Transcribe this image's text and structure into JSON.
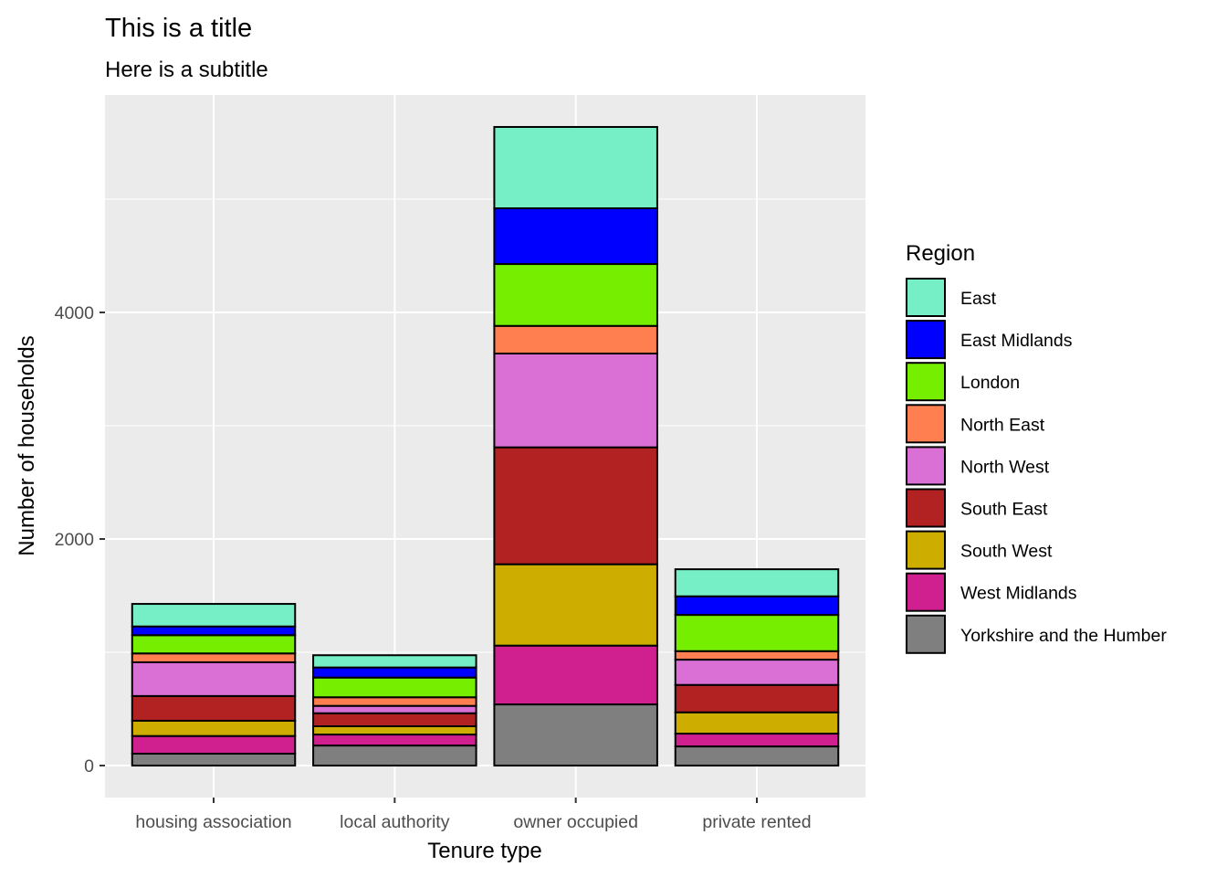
{
  "chart_data": {
    "type": "bar",
    "stacked": true,
    "title": "This is a title",
    "subtitle": "Here is a subtitle",
    "xlabel": "Tenure type",
    "ylabel": "Number of households",
    "categories": [
      "housing association",
      "local authority",
      "owner occupied",
      "private rented"
    ],
    "ylim": [
      -282,
      5919
    ],
    "yticks": [
      0,
      2000,
      4000
    ],
    "yticks_minor": [
      1000,
      3000,
      5000
    ],
    "ytick_labels": [
      "0",
      "2000",
      "4000"
    ],
    "grid": true,
    "legend": {
      "title": "Region",
      "position": "right"
    },
    "series": [
      {
        "name": "East",
        "color": "#76EEC6",
        "values": [
          199,
          108,
          718,
          239
        ]
      },
      {
        "name": "East Midlands",
        "color": "#0000FF",
        "values": [
          77,
          89,
          492,
          164
        ]
      },
      {
        "name": "London",
        "color": "#76EE00",
        "values": [
          161,
          174,
          546,
          320
        ]
      },
      {
        "name": "North East",
        "color": "#FF7F50",
        "values": [
          78,
          76,
          244,
          75
        ]
      },
      {
        "name": "North West",
        "color": "#DA70D6",
        "values": [
          298,
          65,
          828,
          223
        ]
      },
      {
        "name": "South East",
        "color": "#B22222",
        "values": [
          218,
          115,
          1032,
          242
        ]
      },
      {
        "name": "South West",
        "color": "#CDAD00",
        "values": [
          135,
          73,
          718,
          188
        ]
      },
      {
        "name": "West Midlands",
        "color": "#D02090",
        "values": [
          156,
          97,
          519,
          113
        ]
      },
      {
        "name": "Yorkshire and the Humber",
        "color": "#7F7F7F",
        "values": [
          105,
          177,
          540,
          169
        ]
      }
    ],
    "stack_order_bottom_to_top": [
      "Yorkshire and the Humber",
      "West Midlands",
      "South West",
      "South East",
      "North West",
      "North East",
      "London",
      "East Midlands",
      "East"
    ]
  },
  "style": {
    "panel_background": "#EBEBEB",
    "grid_color": "#FFFFFF",
    "bar_outline": "#000000",
    "tick_color": "#333333"
  }
}
